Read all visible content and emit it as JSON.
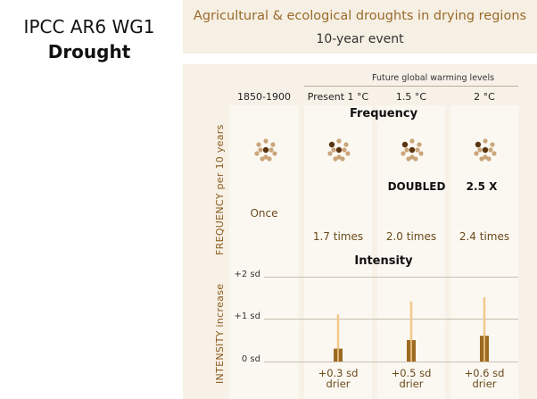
{
  "header": {
    "org": "IPCC AR6 WG1",
    "topic": "Drought"
  },
  "banner": {
    "title": "Agricultural & ecological droughts in drying regions",
    "subtitle": "10-year event"
  },
  "panel": {
    "future_header": "Future global warming levels",
    "columns": [
      "1850-1900",
      "Present 1 °C",
      "1.5 °C",
      "2 °C"
    ],
    "frequency_title": "Frequency",
    "intensity_title": "Intensity",
    "frequency_axis_label": "FREQUENCY per 10 years",
    "intensity_axis_label": "INTENSITY increase",
    "callouts": {
      "doubled": "DOUBLED",
      "times_2_5": "2.5 X"
    },
    "frequency_values": [
      "Once",
      "1.7 times",
      "2.0 times",
      "2.4 times"
    ],
    "sd_ticks": [
      "+2 sd",
      "+1 sd",
      "0 sd"
    ],
    "drier_values": [
      {
        "line1": "+0.3 sd",
        "line2": "drier"
      },
      {
        "line1": "+0.5 sd",
        "line2": "drier"
      },
      {
        "line1": "+0.6 sd",
        "line2": "drier"
      }
    ]
  },
  "colors": {
    "bar": "#9c6a22",
    "whisker": "#f1c98a",
    "dot_light": "#caa57a",
    "dot_dark": "#5a3410"
  },
  "chart_data": {
    "type": "bar",
    "title": "Agricultural & ecological droughts in drying regions",
    "subtitle": "10-year event",
    "categories": [
      "Present 1 °C",
      "1.5 °C",
      "2 °C"
    ],
    "ylabel": "INTENSITY increase",
    "ylim": [
      0,
      2
    ],
    "series": [
      {
        "values": [
          0.3,
          0.5,
          0.6
        ],
        "low": [
          0.0,
          0.0,
          0.0
        ],
        "high": [
          1.1,
          1.4,
          1.5
        ]
      }
    ],
    "frequency": {
      "ylabel": "FREQUENCY per 10 years",
      "categories": [
        "1850-1900",
        "Present 1 °C",
        "1.5 °C",
        "2 °C"
      ],
      "values": [
        1.0,
        1.7,
        2.0,
        2.4
      ]
    }
  }
}
